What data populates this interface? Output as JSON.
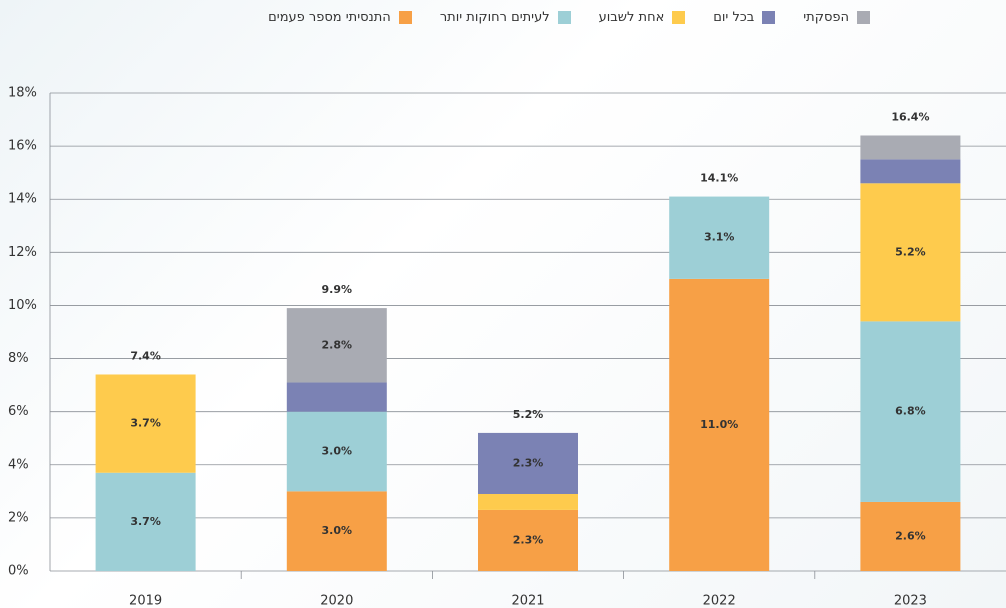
{
  "chart_data": {
    "type": "stacked_bar",
    "categories": [
      "2019",
      "2020",
      "2021",
      "2022",
      "2023"
    ],
    "series": [
      {
        "name": "התנסיתי מספר פעמים",
        "color": "#f7a046",
        "values": [
          null,
          3.0,
          2.3,
          11.0,
          2.6
        ],
        "value_labels": [
          null,
          "3.0%",
          "2.3%",
          "11.0%",
          "2.6%"
        ]
      },
      {
        "name": "לעיתים רחוקות יותר",
        "color": "#9dcfd6",
        "values": [
          3.7,
          3.0,
          null,
          3.1,
          6.8
        ],
        "value_labels": [
          "3.7%",
          "3.0%",
          null,
          "3.1%",
          "6.8%"
        ]
      },
      {
        "name": "אחת לשבוע",
        "color": "#fecb4d",
        "values": [
          3.7,
          null,
          0.6,
          null,
          5.2
        ],
        "value_labels": [
          "3.7%",
          null,
          null,
          null,
          "5.2%"
        ]
      },
      {
        "name": "בכל יום",
        "color": "#7b82b4",
        "values": [
          null,
          1.1,
          2.3,
          null,
          0.9
        ],
        "value_labels": [
          null,
          null,
          "2.3%",
          null,
          null
        ]
      },
      {
        "name": "הפסקתי",
        "color": "#a9abb3",
        "values": [
          null,
          2.8,
          null,
          null,
          0.9
        ],
        "value_labels": [
          null,
          "2.8%",
          null,
          null,
          null
        ]
      }
    ],
    "totals": [
      7.4,
      9.9,
      5.2,
      14.1,
      16.4
    ],
    "total_labels": [
      "7.4%",
      "9.9%",
      "5.2%",
      "14.1%",
      "16.4%"
    ],
    "ylim": [
      0,
      18
    ],
    "yticks": [
      {
        "value": 0,
        "label": "0%"
      },
      {
        "value": 2,
        "label": "2%"
      },
      {
        "value": 4,
        "label": "4%"
      },
      {
        "value": 6,
        "label": "6%"
      },
      {
        "value": 8,
        "label": "8%"
      },
      {
        "value": 10,
        "label": "10%"
      },
      {
        "value": 12,
        "label": "12%"
      },
      {
        "value": 14,
        "label": "14%"
      },
      {
        "value": 16,
        "label": "16%"
      },
      {
        "value": 18,
        "label": "18%"
      }
    ],
    "grid": true
  }
}
